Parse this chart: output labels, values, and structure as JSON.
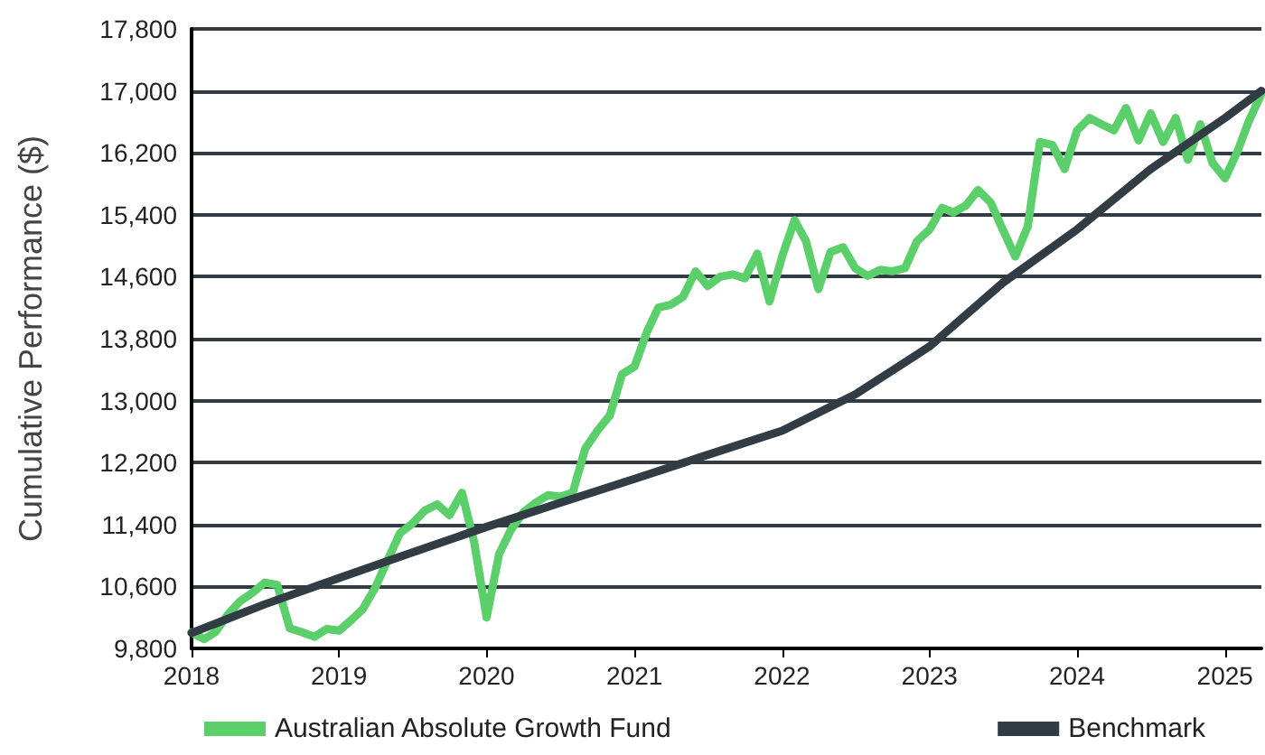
{
  "chart_data": {
    "type": "line",
    "ylabel": "Cumulative Performance ($)",
    "xlim": [
      "2018-01",
      "2025-04"
    ],
    "xticks": [
      "2018",
      "2019",
      "2020",
      "2021",
      "2022",
      "2023",
      "2024",
      "2025"
    ],
    "ylim": [
      9800,
      17800
    ],
    "yticks": [
      {
        "value": 9800,
        "label": "9,800"
      },
      {
        "value": 10600,
        "label": "10,600"
      },
      {
        "value": 11400,
        "label": "11,400"
      },
      {
        "value": 12200,
        "label": "12,200"
      },
      {
        "value": 13000,
        "label": "13,000"
      },
      {
        "value": 13800,
        "label": "13,800"
      },
      {
        "value": 14600,
        "label": "14,600"
      },
      {
        "value": 15400,
        "label": "15,400"
      },
      {
        "value": 16200,
        "label": "16,200"
      },
      {
        "value": 17000,
        "label": "17,000"
      },
      {
        "value": 17800,
        "label": "17,800"
      }
    ],
    "grid": "y",
    "legend": "bottom",
    "marker": "none",
    "line_style": "solid",
    "series": [
      {
        "name": "Australian Absolute Growth Fund",
        "color": "#5acf6a",
        "x": [
          "2018-01",
          "2018-02",
          "2018-03",
          "2018-04",
          "2018-05",
          "2018-06",
          "2018-07",
          "2018-08",
          "2018-09",
          "2018-10",
          "2018-11",
          "2018-12",
          "2019-01",
          "2019-02",
          "2019-03",
          "2019-04",
          "2019-05",
          "2019-06",
          "2019-07",
          "2019-08",
          "2019-09",
          "2019-10",
          "2019-11",
          "2019-12",
          "2020-01",
          "2020-02",
          "2020-03",
          "2020-04",
          "2020-05",
          "2020-06",
          "2020-07",
          "2020-08",
          "2020-09",
          "2020-10",
          "2020-11",
          "2020-12",
          "2021-01",
          "2021-02",
          "2021-03",
          "2021-04",
          "2021-05",
          "2021-06",
          "2021-07",
          "2021-08",
          "2021-09",
          "2021-10",
          "2021-11",
          "2021-12",
          "2022-01",
          "2022-02",
          "2022-03",
          "2022-04",
          "2022-05",
          "2022-06",
          "2022-07",
          "2022-08",
          "2022-09",
          "2022-10",
          "2022-11",
          "2022-12",
          "2023-01",
          "2023-02",
          "2023-03",
          "2023-04",
          "2023-05",
          "2023-06",
          "2023-07",
          "2023-08",
          "2023-09",
          "2023-10",
          "2023-11",
          "2023-12",
          "2024-01",
          "2024-02",
          "2024-03",
          "2024-04",
          "2024-05",
          "2024-06",
          "2024-07",
          "2024-08",
          "2024-09",
          "2024-10",
          "2024-11",
          "2024-12",
          "2025-01",
          "2025-02",
          "2025-03",
          "2025-04"
        ],
        "values": [
          10010,
          9920,
          10010,
          10240,
          10410,
          10520,
          10650,
          10620,
          10060,
          10010,
          9950,
          10050,
          10030,
          10170,
          10310,
          10590,
          10940,
          11290,
          11410,
          11580,
          11660,
          11520,
          11810,
          11180,
          10200,
          11020,
          11330,
          11560,
          11680,
          11780,
          11760,
          11810,
          12380,
          12610,
          12810,
          13340,
          13440,
          13890,
          14200,
          14240,
          14340,
          14670,
          14480,
          14600,
          14630,
          14580,
          14900,
          14280,
          14860,
          15330,
          15060,
          14440,
          14920,
          14980,
          14710,
          14610,
          14690,
          14670,
          14710,
          15060,
          15210,
          15490,
          15430,
          15520,
          15720,
          15560,
          15210,
          14860,
          15250,
          16340,
          16300,
          15990,
          16490,
          16650,
          16570,
          16490,
          16780,
          16360,
          16710,
          16340,
          16650,
          16110,
          16570,
          16070,
          15870,
          16220,
          16610,
          16960
        ]
      },
      {
        "name": "Benchmark",
        "color": "#323c44",
        "x": [
          "2018-01",
          "2018-07",
          "2019-01",
          "2019-07",
          "2020-01",
          "2020-07",
          "2021-01",
          "2021-07",
          "2022-01",
          "2022-07",
          "2023-01",
          "2023-07",
          "2024-01",
          "2024-07",
          "2025-01",
          "2025-04"
        ],
        "values": [
          10000,
          10370,
          10710,
          11040,
          11370,
          11680,
          11990,
          12300,
          12610,
          13080,
          13700,
          14520,
          15210,
          15990,
          16650,
          17000
        ]
      }
    ]
  }
}
